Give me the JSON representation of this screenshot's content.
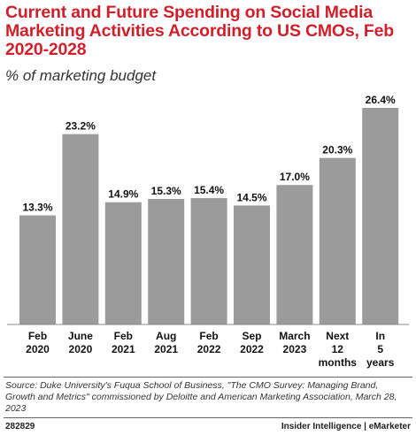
{
  "header": {
    "title": "Current and Future Spending on Social Media Marketing Activities According to US CMOs, Feb 2020-2028",
    "subtitle": "% of marketing budget"
  },
  "chart_data": {
    "type": "bar",
    "categories": [
      [
        "Feb",
        "2020"
      ],
      [
        "June",
        "2020"
      ],
      [
        "Feb",
        "2021"
      ],
      [
        "Aug",
        "2021"
      ],
      [
        "Feb",
        "2022"
      ],
      [
        "Sep",
        "2022"
      ],
      [
        "March",
        "2023"
      ],
      [
        "Next",
        "12",
        "months"
      ],
      [
        "In",
        "5",
        "years"
      ]
    ],
    "values": [
      13.3,
      23.2,
      14.9,
      15.3,
      15.4,
      14.5,
      17.0,
      20.3,
      26.4
    ],
    "value_labels": [
      "13.3%",
      "23.2%",
      "14.9%",
      "15.3%",
      "15.4%",
      "14.5%",
      "17.0%",
      "20.3%",
      "26.4%"
    ],
    "ylim": [
      0,
      26.4
    ],
    "bar_color": "#9b9b9b",
    "grid": false
  },
  "source": "Source: Duke University's Fuqua School of Business, \"The CMO Survey: Managing Brand, Growth and Metrics\" commissioned by Deloitte and American Marketing Association, March 28, 2023",
  "footer": {
    "code": "282829",
    "brand": "Insider Intelligence | eMarketer"
  },
  "colors": {
    "title": "#d0202b",
    "bar": "#9b9b9b"
  }
}
